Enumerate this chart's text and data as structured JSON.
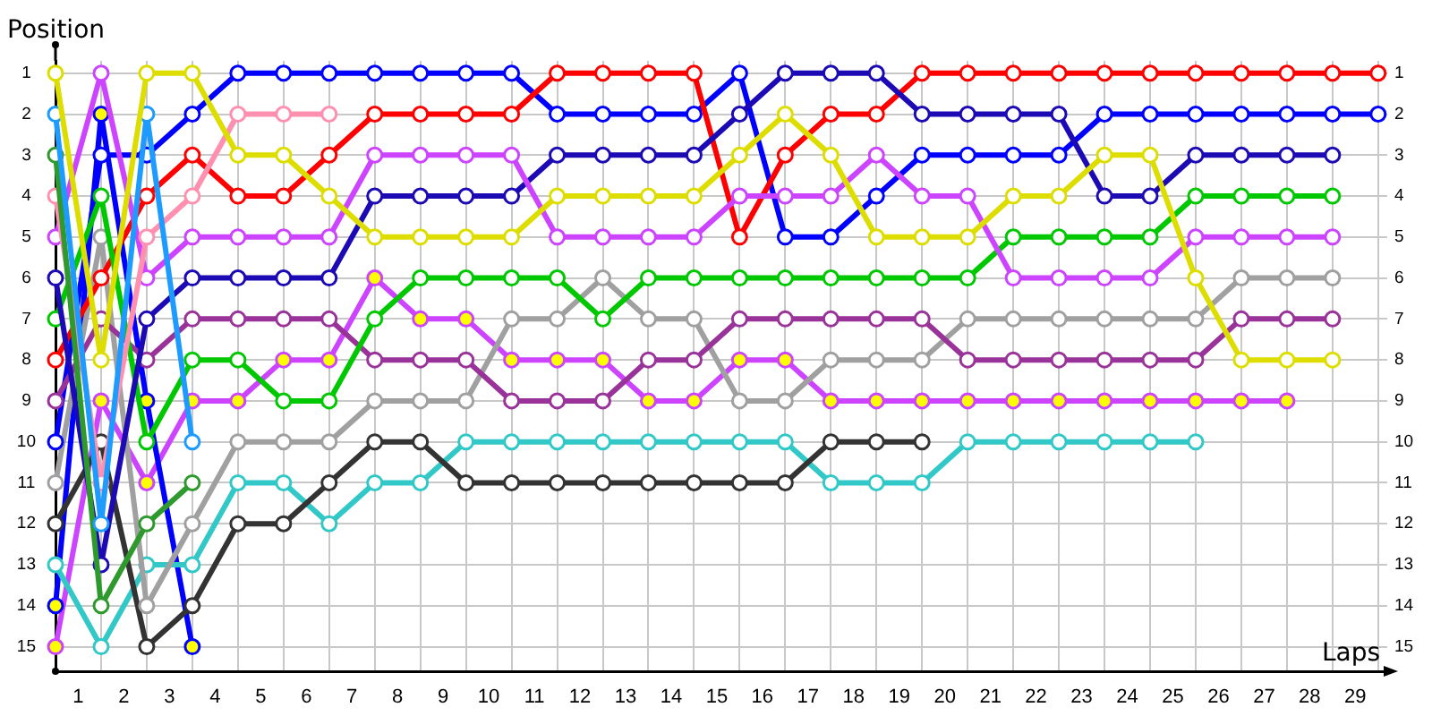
{
  "chart_data": {
    "type": "line",
    "xlabel": "Laps",
    "ylabel": "Position",
    "x": [
      0,
      1,
      2,
      3,
      4,
      5,
      6,
      7,
      8,
      9,
      10,
      11,
      12,
      13,
      14,
      15,
      16,
      17,
      18,
      19,
      20,
      21,
      22,
      23,
      24,
      25,
      26,
      27,
      28,
      29
    ],
    "xlim": [
      0,
      29.2
    ],
    "xticks": [
      {
        "value": 0,
        "label": null
      },
      {
        "value": 0.5,
        "label": "1"
      },
      {
        "value": 1,
        "label": null
      },
      {
        "value": 1.5,
        "label": "2"
      },
      {
        "value": 2,
        "label": null
      },
      {
        "value": 2.5,
        "label": "3"
      },
      {
        "value": 3,
        "label": null
      },
      {
        "value": 3.5,
        "label": "4"
      },
      {
        "value": 4,
        "label": null
      },
      {
        "value": 4.5,
        "label": "5"
      },
      {
        "value": 5,
        "label": null
      },
      {
        "value": 5.5,
        "label": "6"
      },
      {
        "value": 6,
        "label": null
      },
      {
        "value": 6.5,
        "label": "7"
      },
      {
        "value": 7,
        "label": null
      },
      {
        "value": 7.5,
        "label": "8"
      },
      {
        "value": 8,
        "label": null
      },
      {
        "value": 8.5,
        "label": "9"
      },
      {
        "value": 9,
        "label": null
      },
      {
        "value": 9.5,
        "label": "10"
      },
      {
        "value": 10,
        "label": null
      },
      {
        "value": 10.5,
        "label": "11"
      },
      {
        "value": 11,
        "label": null
      },
      {
        "value": 11.5,
        "label": "12"
      },
      {
        "value": 12,
        "label": null
      },
      {
        "value": 12.5,
        "label": "13"
      },
      {
        "value": 13,
        "label": null
      },
      {
        "value": 13.5,
        "label": "14"
      },
      {
        "value": 14,
        "label": null
      },
      {
        "value": 14.5,
        "label": "15"
      },
      {
        "value": 15,
        "label": null
      },
      {
        "value": 15.5,
        "label": "16"
      },
      {
        "value": 16,
        "label": null
      },
      {
        "value": 16.5,
        "label": "17"
      },
      {
        "value": 17,
        "label": null
      },
      {
        "value": 17.5,
        "label": "18"
      },
      {
        "value": 18,
        "label": null
      },
      {
        "value": 18.5,
        "label": "19"
      },
      {
        "value": 19,
        "label": null
      },
      {
        "value": 19.5,
        "label": "20"
      },
      {
        "value": 20,
        "label": null
      },
      {
        "value": 20.5,
        "label": "21"
      },
      {
        "value": 21,
        "label": null
      },
      {
        "value": 21.5,
        "label": "22"
      },
      {
        "value": 22,
        "label": null
      },
      {
        "value": 22.5,
        "label": "23"
      },
      {
        "value": 23,
        "label": null
      },
      {
        "value": 23.5,
        "label": "24"
      },
      {
        "value": 24,
        "label": null
      },
      {
        "value": 24.5,
        "label": "25"
      },
      {
        "value": 25,
        "label": null
      },
      {
        "value": 25.5,
        "label": "26"
      },
      {
        "value": 26,
        "label": null
      },
      {
        "value": 26.5,
        "label": "27"
      },
      {
        "value": 27,
        "label": null
      },
      {
        "value": 27.5,
        "label": "28"
      },
      {
        "value": 28,
        "label": null
      },
      {
        "value": 28.5,
        "label": "29"
      },
      {
        "value": 29,
        "label": null
      }
    ],
    "ylim": [
      15.6,
      0.7
    ],
    "yticks": [
      1,
      2,
      3,
      4,
      5,
      6,
      7,
      8,
      9,
      10,
      11,
      12,
      13,
      14,
      15
    ],
    "y2lim": [
      15.6,
      0.7
    ],
    "y2ticks": [
      1,
      2,
      3,
      4,
      5,
      6,
      7,
      8,
      9,
      10,
      11,
      12,
      13,
      14,
      15
    ],
    "grid": true,
    "legend": false,
    "marker": "circle",
    "line_style": "solid",
    "series": [
      {
        "color": "#dddd00",
        "values": [
          1,
          8,
          1,
          1,
          3,
          3,
          4,
          5,
          5,
          5,
          5,
          4,
          4,
          4,
          4,
          3,
          2,
          3,
          5,
          5,
          5,
          4,
          4,
          3,
          3,
          6,
          8,
          8,
          8,
          null
        ]
      },
      {
        "color": "#1e9bff",
        "values": [
          2,
          12,
          2,
          10,
          null,
          null,
          null,
          null,
          null,
          null,
          null,
          null,
          null,
          null,
          null,
          null,
          null,
          null,
          null,
          null,
          null,
          null,
          null,
          null,
          null,
          null,
          null,
          null,
          null,
          null
        ]
      },
      {
        "color": "#2e9a2e",
        "values": [
          3,
          14,
          12,
          11,
          null,
          null,
          null,
          null,
          null,
          null,
          null,
          null,
          null,
          null,
          null,
          null,
          null,
          null,
          null,
          null,
          null,
          null,
          null,
          null,
          null,
          null,
          null,
          null,
          null,
          null
        ]
      },
      {
        "color": "#ff90b0",
        "values": [
          4,
          11,
          5,
          4,
          2,
          2,
          2,
          null,
          null,
          null,
          null,
          null,
          null,
          null,
          null,
          null,
          null,
          null,
          null,
          null,
          null,
          null,
          null,
          null,
          null,
          null,
          null,
          null,
          null,
          null
        ]
      },
      {
        "color": "#cc44ff",
        "values": [
          5,
          1,
          6,
          5,
          5,
          5,
          5,
          3,
          3,
          3,
          3,
          5,
          5,
          5,
          5,
          4,
          4,
          4,
          3,
          4,
          4,
          6,
          6,
          6,
          6,
          5,
          5,
          5,
          5,
          null
        ]
      },
      {
        "color": "#1c0ab4",
        "values": [
          6,
          13,
          7,
          6,
          6,
          6,
          6,
          4,
          4,
          4,
          4,
          3,
          3,
          3,
          3,
          2,
          1,
          1,
          1,
          2,
          2,
          2,
          2,
          4,
          4,
          3,
          3,
          3,
          3,
          null
        ]
      },
      {
        "color": "#00c800",
        "values": [
          7,
          4,
          10,
          8,
          8,
          9,
          9,
          7,
          6,
          6,
          6,
          6,
          7,
          6,
          6,
          6,
          6,
          6,
          6,
          6,
          6,
          5,
          5,
          5,
          5,
          4,
          4,
          4,
          4,
          null
        ]
      },
      {
        "color": "#ff0000",
        "values": [
          8,
          6,
          4,
          3,
          4,
          4,
          3,
          2,
          2,
          2,
          2,
          1,
          1,
          1,
          1,
          5,
          3,
          2,
          2,
          1,
          1,
          1,
          1,
          1,
          1,
          1,
          1,
          1,
          1,
          1
        ]
      },
      {
        "color": "#993399",
        "values": [
          9,
          7,
          8,
          7,
          7,
          7,
          7,
          8,
          8,
          8,
          9,
          9,
          9,
          8,
          8,
          7,
          7,
          7,
          7,
          7,
          8,
          8,
          8,
          8,
          8,
          8,
          7,
          7,
          7,
          null
        ]
      },
      {
        "color": "#0000ff",
        "values": [
          10,
          3,
          3,
          2,
          1,
          1,
          1,
          1,
          1,
          1,
          1,
          2,
          2,
          2,
          2,
          1,
          5,
          5,
          4,
          3,
          3,
          3,
          3,
          2,
          2,
          2,
          2,
          2,
          2,
          2
        ]
      },
      {
        "color": "#a0a0a0",
        "values": [
          11,
          5,
          14,
          12,
          10,
          10,
          10,
          9,
          9,
          9,
          7,
          7,
          6,
          7,
          7,
          9,
          9,
          8,
          8,
          8,
          7,
          7,
          7,
          7,
          7,
          7,
          6,
          6,
          6,
          null
        ]
      },
      {
        "color": "#333333",
        "values": [
          12,
          10,
          15,
          14,
          12,
          12,
          11,
          10,
          10,
          11,
          11,
          11,
          11,
          11,
          11,
          11,
          11,
          10,
          10,
          10,
          null,
          null,
          null,
          null,
          null,
          null,
          null,
          null,
          null,
          null
        ]
      },
      {
        "color": "#33c8c8",
        "values": [
          13,
          15,
          13,
          13,
          11,
          11,
          12,
          11,
          11,
          10,
          10,
          10,
          10,
          10,
          10,
          10,
          10,
          11,
          11,
          11,
          10,
          10,
          10,
          10,
          10,
          10,
          null,
          null,
          null,
          null
        ]
      },
      {
        "color": "#0000ff",
        "values": [
          14,
          2,
          9,
          15,
          null,
          null,
          null,
          null,
          null,
          null,
          null,
          null,
          null,
          null,
          null,
          null,
          null,
          null,
          null,
          null,
          null,
          null,
          null,
          null,
          null,
          null,
          null,
          null,
          null,
          null
        ],
        "colors": [
          "#ffff00",
          "#ffff00",
          "#ffff00",
          "#ffff00",
          null,
          null,
          null,
          null,
          null,
          null,
          null,
          null,
          null,
          null,
          null,
          null,
          null,
          null,
          null,
          null,
          null,
          null,
          null,
          null,
          null,
          null,
          null,
          null,
          null,
          null
        ]
      },
      {
        "color": "#cc44ff",
        "values": [
          15,
          9,
          11,
          9,
          9,
          8,
          8,
          6,
          7,
          7,
          8,
          8,
          8,
          9,
          9,
          8,
          8,
          9,
          9,
          9,
          9,
          9,
          9,
          9,
          9,
          9,
          9,
          9,
          null,
          null
        ],
        "colors": [
          "#ffff00",
          "#ffff00",
          "#ffff00",
          "#ffff00",
          "#ffff00",
          "#ffff00",
          "#ffff00",
          "#ffff00",
          "#ffff00",
          "#ffff00",
          "#ffff00",
          "#ffff00",
          "#ffff00",
          "#ffff00",
          "#ffff00",
          "#ffff00",
          "#ffff00",
          "#ffff00",
          "#ffff00",
          "#ffff00",
          "#ffff00",
          "#ffff00",
          "#ffff00",
          "#ffff00",
          "#ffff00",
          "#ffff00",
          "#ffff00",
          "#ffff00",
          null,
          null
        ]
      }
    ]
  }
}
